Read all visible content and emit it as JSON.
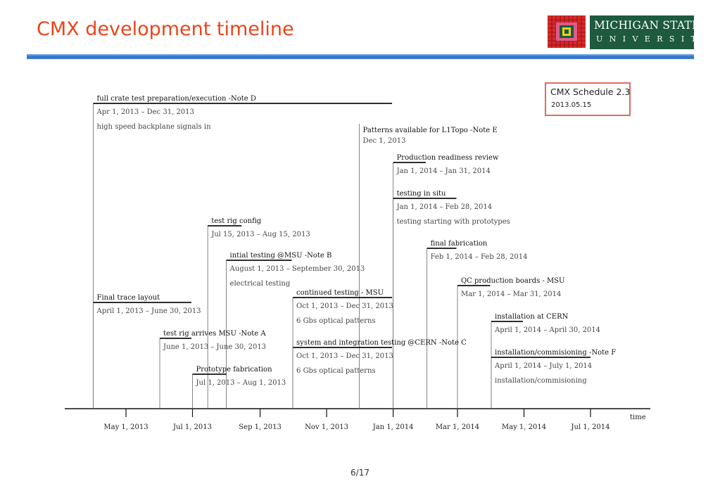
{
  "slide": {
    "title": "CMX development timeline",
    "page": "6/17"
  },
  "logo": {
    "line1": "MICHIGAN STATE",
    "line2": "UNIVERSITY",
    "colors": {
      "green": "#1d5a3e",
      "red": "#d42a2a",
      "pink": "#e05a8a",
      "yellow": "#e8d020"
    }
  },
  "schedule": {
    "title": "CMX Schedule 2.3",
    "date": "2013.05.15"
  },
  "chart_data": {
    "type": "timeline",
    "x_axis_label": "time",
    "x_range": [
      "2013-04-01",
      "2014-07-20"
    ],
    "ticks": [
      {
        "date": "2013-05-01",
        "label": "May 1, 2013"
      },
      {
        "date": "2013-07-01",
        "label": "Jul 1, 2013"
      },
      {
        "date": "2013-09-01",
        "label": "Sep 1, 2013"
      },
      {
        "date": "2013-11-01",
        "label": "Nov 1, 2013"
      },
      {
        "date": "2014-01-01",
        "label": "Jan 1, 2014"
      },
      {
        "date": "2014-03-01",
        "label": "Mar 1, 2014"
      },
      {
        "date": "2014-05-01",
        "label": "May 1, 2014"
      },
      {
        "date": "2014-07-01",
        "label": "Jul 1, 2014"
      }
    ],
    "tasks": [
      {
        "name": "full crate test preparation/execution -Note D",
        "start": "2013-04-01",
        "end": "2013-12-31",
        "dates": "Apr 1, 2013 – Dec 31, 2013",
        "note": "high speed backplane signals in",
        "level": 147
      },
      {
        "name": "Patterns available for L1Topo -Note E",
        "start": "2013-12-01",
        "end": "2013-12-01",
        "dates": "Dec 1, 2013",
        "note": "",
        "level": 180
      },
      {
        "name": "Production readiness review",
        "start": "2014-01-01",
        "end": "2014-01-31",
        "dates": "Jan 1, 2014 – Jan 31, 2014",
        "note": "",
        "level": 231
      },
      {
        "name": "testing in situ",
        "start": "2014-01-01",
        "end": "2014-02-28",
        "dates": "Jan 1, 2014 – Feb 28, 2014",
        "note": "testing starting with prototypes",
        "level": 282
      },
      {
        "name": "test rig config",
        "start": "2013-07-15",
        "end": "2013-08-15",
        "dates": "Jul 15, 2013 – Aug 15, 2013",
        "note": "",
        "level": 321
      },
      {
        "name": "final fabrication",
        "start": "2014-02-01",
        "end": "2014-02-28",
        "dates": "Feb 1, 2014 – Feb 28, 2014",
        "note": "",
        "level": 353
      },
      {
        "name": "intial testing @MSU -Note B",
        "start": "2013-08-01",
        "end": "2013-09-30",
        "dates": "August 1, 2013 – September 30, 2013",
        "note": "electrical testing",
        "level": 370
      },
      {
        "name": "QC production boards - MSU",
        "start": "2014-03-01",
        "end": "2014-03-31",
        "dates": "Mar 1, 2014 – Mar 31, 2014",
        "note": "",
        "level": 406
      },
      {
        "name": "continued testing - MSU",
        "start": "2013-10-01",
        "end": "2013-12-31",
        "dates": "Oct 1, 2013 – Dec 31, 2013",
        "note": "6 Gbs optical patterns",
        "level": 423
      },
      {
        "name": "Final trace layout",
        "start": "2013-04-01",
        "end": "2013-06-30",
        "dates": "April 1, 2013 – June 30, 2013",
        "note": "",
        "level": 430
      },
      {
        "name": "installation at CERN",
        "start": "2014-04-01",
        "end": "2014-04-30",
        "dates": "April 1, 2014 – April 30, 2014",
        "note": "",
        "level": 457
      },
      {
        "name": "test rig arrives MSU -Note A",
        "start": "2013-06-01",
        "end": "2013-06-30",
        "dates": "June 1, 2013 – June 30, 2013",
        "note": "",
        "level": 481
      },
      {
        "name": "system and integration testing @CERN -Note C",
        "start": "2013-10-01",
        "end": "2013-12-31",
        "dates": "Oct 1, 2013 – Dec 31, 2013",
        "note": "6 Gbs optical patterns",
        "level": 494
      },
      {
        "name": "installation/commisioning -Note F",
        "start": "2014-04-01",
        "end": "2014-07-01",
        "dates": "April 1, 2014 – July 1, 2014",
        "note": "installation/commisioning",
        "level": 508
      },
      {
        "name": "Prototype fabrication",
        "start": "2013-07-01",
        "end": "2013-08-01",
        "dates": "Jul 1, 2013 – Aug 1, 2013",
        "note": "",
        "level": 532
      }
    ]
  }
}
